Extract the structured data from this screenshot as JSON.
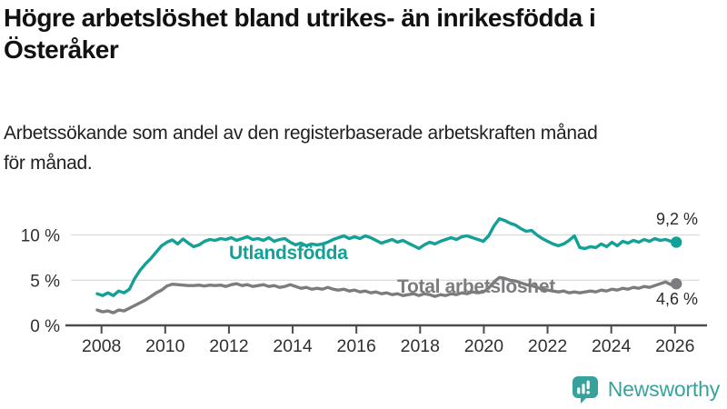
{
  "header": {
    "title_line1": "Högre arbetslöshet bland utrikes- än inrikesfödda i",
    "title_line2": "Österåker",
    "subtitle_line1": "Arbetssökande som andel av den registerbaserade arbetskraften månad",
    "subtitle_line2": "för månad."
  },
  "branding": {
    "name": "Newsworthy",
    "color": "#37a29c",
    "icon": "newsworthy-speech-bubble-bar-chart-icon"
  },
  "chart_data": {
    "type": "line",
    "title": "Högre arbetslöshet bland utrikes- än inrikesfödda i Österåker",
    "subtitle": "Arbetssökande som andel av den registerbaserade arbetskraften månad för månad.",
    "x_start_year": 2008,
    "points_per_year": 6,
    "x_range": [
      2007.9,
      2026.1
    ],
    "ylim": [
      0,
      13.9
    ],
    "grid": "horizontal",
    "legend_position": "inline-labels",
    "colors": {
      "grid": "#d9d9d9",
      "axis": "#4b4b4b",
      "tick_text": "#2f2f2f"
    },
    "y_axis": {
      "ticks": [
        {
          "label": "10 %",
          "value": 10
        },
        {
          "label": "5 %",
          "value": 5
        },
        {
          "label": "0 %",
          "value": 0
        }
      ]
    },
    "x_axis": {
      "ticks": [
        {
          "label": "2008",
          "year": 2008
        },
        {
          "label": "2010",
          "year": 2010
        },
        {
          "label": "2012",
          "year": 2012
        },
        {
          "label": "2014",
          "year": 2014
        },
        {
          "label": "2016",
          "year": 2016
        },
        {
          "label": "2018",
          "year": 2018
        },
        {
          "label": "2020",
          "year": 2020
        },
        {
          "label": "2022",
          "year": 2022
        },
        {
          "label": "2024",
          "year": 2024
        },
        {
          "label": "2026",
          "year": 2026
        }
      ]
    },
    "series": [
      {
        "name": "Utlandsfödda",
        "color": "#13a096",
        "end_label": "9,2 %",
        "end_value": 9.2,
        "values": [
          3.5,
          3.3,
          3.6,
          3.3,
          3.8,
          3.6,
          4.0,
          5.2,
          6.1,
          6.8,
          7.4,
          8.1,
          8.8,
          9.2,
          9.45,
          9.0,
          9.55,
          9.1,
          8.7,
          8.9,
          9.3,
          9.5,
          9.4,
          9.6,
          9.5,
          9.7,
          9.4,
          9.6,
          9.8,
          9.5,
          9.6,
          9.4,
          9.7,
          9.3,
          9.5,
          9.6,
          9.2,
          8.9,
          9.1,
          8.8,
          9.0,
          8.9,
          9.0,
          9.2,
          9.5,
          9.7,
          9.9,
          9.6,
          9.8,
          9.6,
          9.9,
          9.7,
          9.4,
          9.1,
          9.3,
          9.5,
          9.2,
          9.4,
          9.1,
          8.8,
          8.5,
          8.9,
          9.2,
          9.0,
          9.3,
          9.5,
          9.7,
          9.5,
          9.8,
          9.9,
          9.7,
          9.5,
          9.3,
          9.9,
          11.0,
          11.8,
          11.6,
          11.3,
          11.1,
          10.7,
          10.4,
          10.5,
          10.0,
          9.6,
          9.3,
          9.0,
          8.8,
          9.0,
          9.4,
          9.9,
          8.6,
          8.5,
          8.7,
          8.6,
          9.0,
          8.7,
          9.2,
          8.8,
          9.3,
          9.1,
          9.4,
          9.2,
          9.5,
          9.3,
          9.6,
          9.4,
          9.5,
          9.3,
          9.2
        ]
      },
      {
        "name": "Total arbetslöshet",
        "color": "#7c7c7f",
        "end_label": "4,6 %",
        "end_value": 4.6,
        "values": [
          1.7,
          1.5,
          1.6,
          1.4,
          1.7,
          1.6,
          1.9,
          2.2,
          2.5,
          2.8,
          3.2,
          3.6,
          3.9,
          4.35,
          4.55,
          4.5,
          4.45,
          4.4,
          4.4,
          4.45,
          4.35,
          4.45,
          4.4,
          4.45,
          4.3,
          4.5,
          4.6,
          4.4,
          4.5,
          4.3,
          4.4,
          4.5,
          4.3,
          4.4,
          4.2,
          4.3,
          4.5,
          4.3,
          4.1,
          4.2,
          4.0,
          4.1,
          4.0,
          4.2,
          4.0,
          3.9,
          4.0,
          3.8,
          3.9,
          3.7,
          3.8,
          3.6,
          3.7,
          3.5,
          3.6,
          3.4,
          3.5,
          3.3,
          3.4,
          3.5,
          3.3,
          3.5,
          3.4,
          3.2,
          3.4,
          3.3,
          3.5,
          3.4,
          3.6,
          3.5,
          3.7,
          3.6,
          3.7,
          4.1,
          4.8,
          5.3,
          5.2,
          5.0,
          4.9,
          4.7,
          4.5,
          4.4,
          4.2,
          4.0,
          3.9,
          3.8,
          3.7,
          3.8,
          3.6,
          3.7,
          3.6,
          3.7,
          3.8,
          3.7,
          3.9,
          3.8,
          4.0,
          3.9,
          4.1,
          4.0,
          4.2,
          4.1,
          4.3,
          4.2,
          4.4,
          4.6,
          4.8,
          4.5,
          4.6
        ]
      }
    ]
  }
}
